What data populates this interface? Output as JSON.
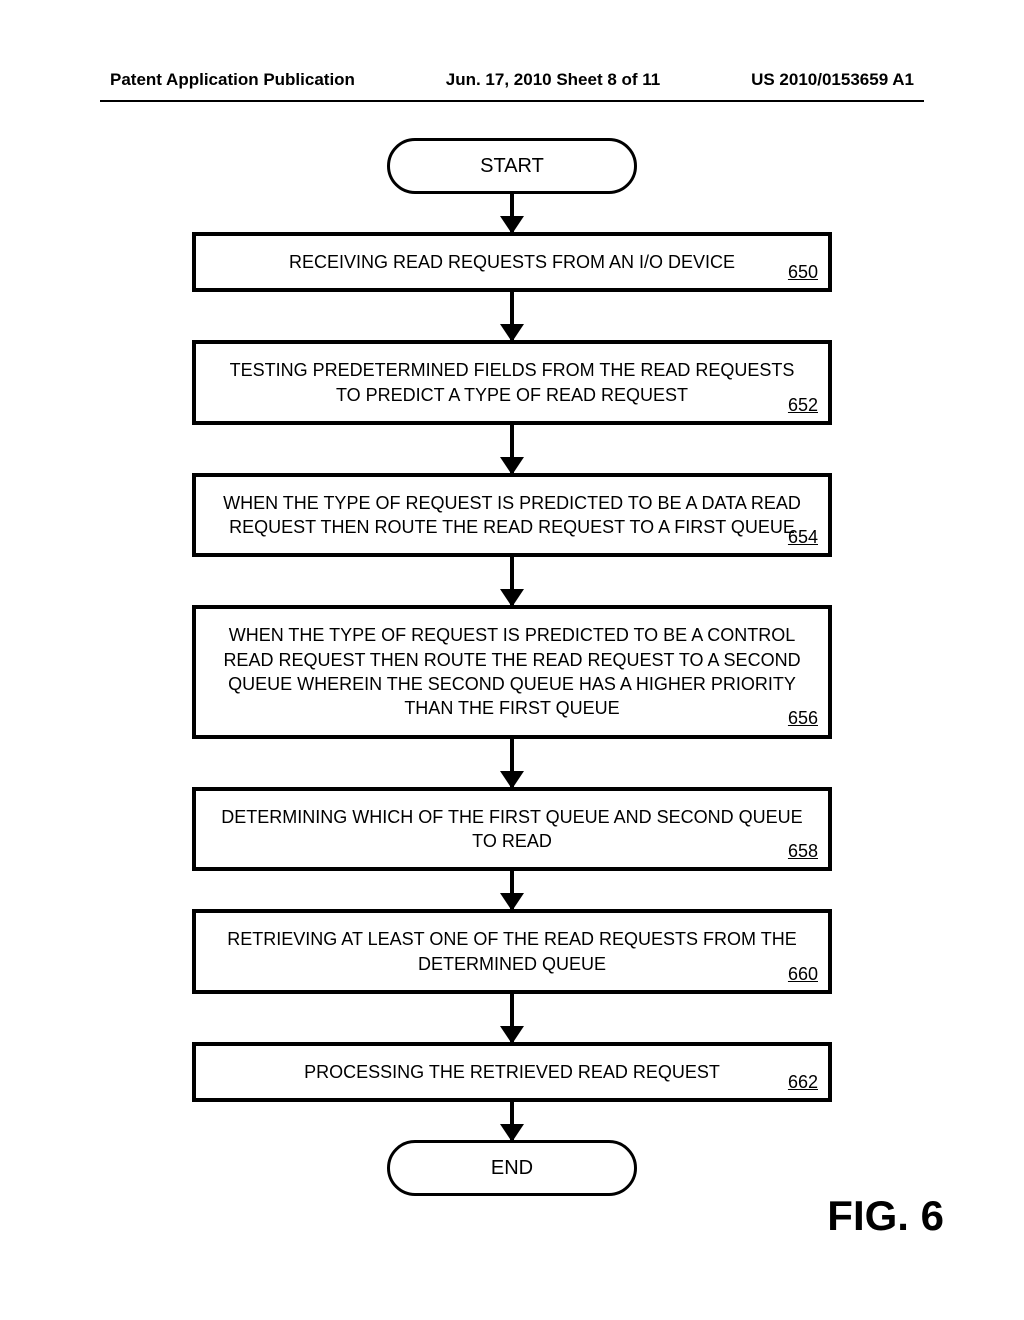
{
  "header": {
    "left": "Patent Application Publication",
    "center": "Jun. 17, 2010  Sheet 8 of 11",
    "right": "US 2010/0153659 A1"
  },
  "flowchart": {
    "type": "flowchart",
    "start_label": "START",
    "end_label": "END",
    "figure_label": "FIG. 6",
    "box_border_color": "#000000",
    "box_border_width": 4,
    "background_color": "#ffffff",
    "text_color": "#000000",
    "font_size": 18,
    "terminal_width": 250,
    "process_width": 640,
    "arrow_color": "#000000",
    "steps": [
      {
        "text": "RECEIVING READ REQUESTS FROM AN I/O DEVICE",
        "ref": "650"
      },
      {
        "text": "TESTING PREDETERMINED FIELDS FROM THE READ REQUESTS TO PREDICT A TYPE OF READ REQUEST",
        "ref": "652"
      },
      {
        "text": "WHEN THE TYPE OF REQUEST IS PREDICTED TO BE A DATA READ REQUEST THEN ROUTE THE READ REQUEST TO A FIRST QUEUE",
        "ref": "654"
      },
      {
        "text": "WHEN THE TYPE OF REQUEST IS PREDICTED TO BE A CONTROL READ REQUEST THEN ROUTE THE READ REQUEST TO A SECOND QUEUE WHEREIN THE SECOND QUEUE HAS A HIGHER PRIORITY THAN THE FIRST QUEUE",
        "ref": "656"
      },
      {
        "text": "DETERMINING WHICH OF THE FIRST QUEUE AND SECOND QUEUE TO READ",
        "ref": "658"
      },
      {
        "text": "RETRIEVING AT LEAST ONE OF THE READ REQUESTS FROM THE DETERMINED QUEUE",
        "ref": "660"
      },
      {
        "text": "PROCESSING THE RETRIEVED READ REQUEST",
        "ref": "662"
      }
    ]
  }
}
